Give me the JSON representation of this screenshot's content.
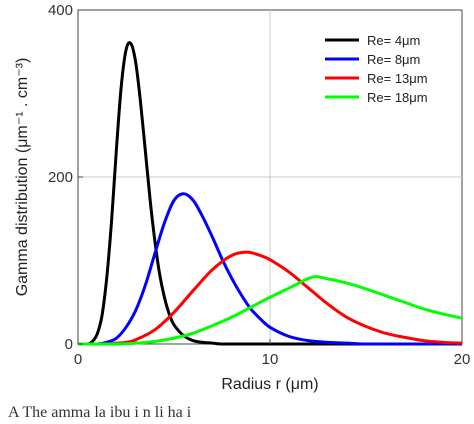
{
  "chart_data": {
    "type": "line",
    "xlabel": "Radius r (μm)",
    "ylabel": "Gamma distribution (μm⁻¹ . cm⁻³)",
    "xlim": [
      0,
      20
    ],
    "ylim": [
      0,
      400
    ],
    "xticks": [
      0,
      10,
      20
    ],
    "yticks": [
      0,
      200,
      400
    ],
    "x_tick_labels": [
      "0",
      "10",
      "20"
    ],
    "y_tick_labels": [
      "0",
      "200",
      "400"
    ],
    "grid": true,
    "legend_position": "top-right",
    "series": [
      {
        "name": "Re= 4μm",
        "color": "#000000",
        "mode": 2.7,
        "peak": 360,
        "x": [
          0,
          0.5,
          0.75,
          1,
          1.25,
          1.5,
          1.75,
          2,
          2.25,
          2.5,
          2.75,
          3,
          3.25,
          3.5,
          3.75,
          4,
          4.25,
          4.5,
          4.75,
          5,
          5.5,
          6,
          6.5,
          7,
          7.5,
          8,
          9,
          10,
          12,
          14,
          16,
          18,
          20
        ],
        "y": [
          0,
          0,
          3,
          12,
          34,
          80,
          148,
          233,
          308,
          352,
          360,
          338,
          291,
          233,
          174,
          124,
          84,
          56,
          36,
          23,
          10,
          4,
          2,
          1,
          0,
          0,
          0,
          0,
          0,
          0,
          0,
          0,
          0
        ]
      },
      {
        "name": "Re= 8μm",
        "color": "#0000ff",
        "mode": 5.4,
        "peak": 180,
        "x": [
          0,
          1,
          1.5,
          2,
          2.5,
          3,
          3.5,
          4,
          4.5,
          5,
          5.5,
          6,
          6.5,
          7,
          7.5,
          8,
          8.5,
          9,
          9.5,
          10,
          11,
          12,
          13,
          14,
          15,
          16,
          18,
          20
        ],
        "y": [
          0,
          0,
          2,
          7,
          20,
          40,
          70,
          108,
          145,
          172,
          180,
          172,
          152,
          128,
          102,
          79,
          59,
          42,
          30,
          20,
          9,
          4,
          2,
          1,
          0,
          0,
          0,
          0
        ]
      },
      {
        "name": "Re= 13μm",
        "color": "#ff0000",
        "mode": 8.8,
        "peak": 110,
        "x": [
          0,
          1.5,
          2,
          2.5,
          3,
          4,
          5,
          6,
          7,
          8,
          8.8,
          9.5,
          10,
          11,
          12,
          13,
          14,
          15,
          16,
          17,
          18,
          19,
          20
        ],
        "y": [
          0,
          0,
          1,
          2,
          5,
          17,
          38,
          64,
          89,
          106,
          110,
          106,
          101,
          86,
          67,
          48,
          32,
          21,
          13,
          8,
          4,
          2,
          1
        ]
      },
      {
        "name": "Re= 18μm",
        "color": "#00ff00",
        "mode": 12.2,
        "peak": 80,
        "x": [
          0,
          2,
          3,
          4,
          5,
          6,
          7,
          8,
          9,
          10,
          11,
          12.2,
          13,
          14,
          15,
          16,
          17,
          18,
          19,
          20
        ],
        "y": [
          0,
          0,
          1,
          3,
          7,
          13,
          22,
          32,
          44,
          56,
          67,
          80,
          78,
          73,
          66,
          58,
          50,
          42,
          36,
          31
        ]
      }
    ],
    "caption": "A         The   amma   la   ibu i n   li   ha   i"
  }
}
